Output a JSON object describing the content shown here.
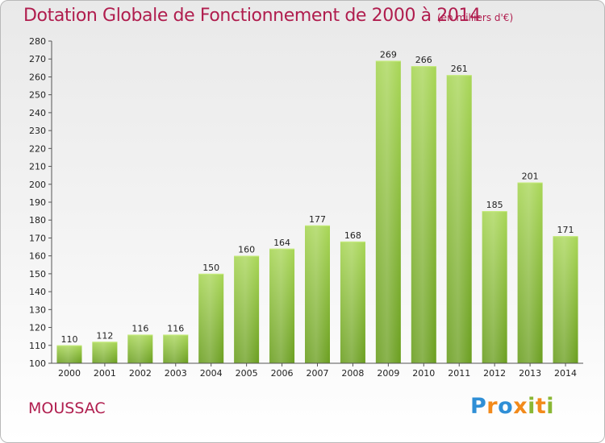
{
  "header": {
    "title": "Dotation Globale de Fonctionnement de 2000 à 2014",
    "unit": "(en milliers d'€)"
  },
  "footer": {
    "commune": "MOUSSAC",
    "brand_letters": [
      "P",
      "r",
      "o",
      "x",
      "i",
      "t",
      "i"
    ]
  },
  "colors": {
    "title": "#b01d4e",
    "bar_light": "#a8d656",
    "bar_dark": "#6a9e1f",
    "brand_blue": "#2f8fd6",
    "brand_orange": "#f28a1b",
    "brand_green": "#8ab734"
  },
  "chart_data": {
    "type": "bar",
    "categories": [
      "2000",
      "2001",
      "2002",
      "2003",
      "2004",
      "2005",
      "2006",
      "2007",
      "2008",
      "2009",
      "2010",
      "2011",
      "2012",
      "2013",
      "2014"
    ],
    "values": [
      110,
      112,
      116,
      116,
      150,
      160,
      164,
      177,
      168,
      269,
      266,
      261,
      185,
      201,
      171
    ],
    "title": "Dotation Globale de Fonctionnement de 2000 à 2014",
    "subtitle": "(en milliers d'€)",
    "xlabel": "",
    "ylabel": "",
    "ylim": [
      100,
      280
    ],
    "ytick_step": 10,
    "grid": false,
    "legend": "none"
  }
}
